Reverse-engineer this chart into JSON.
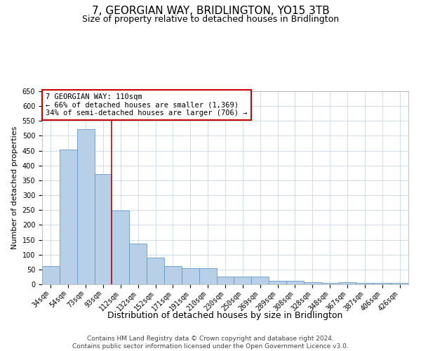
{
  "title": "7, GEORGIAN WAY, BRIDLINGTON, YO15 3TB",
  "subtitle": "Size of property relative to detached houses in Bridlington",
  "xlabel": "Distribution of detached houses by size in Bridlington",
  "ylabel": "Number of detached properties",
  "categories": [
    "34sqm",
    "54sqm",
    "73sqm",
    "93sqm",
    "112sqm",
    "132sqm",
    "152sqm",
    "171sqm",
    "191sqm",
    "210sqm",
    "230sqm",
    "250sqm",
    "269sqm",
    "289sqm",
    "308sqm",
    "328sqm",
    "348sqm",
    "367sqm",
    "387sqm",
    "406sqm",
    "426sqm"
  ],
  "values": [
    62,
    455,
    522,
    370,
    248,
    138,
    91,
    61,
    55,
    54,
    27,
    26,
    26,
    11,
    12,
    7,
    5,
    8,
    4,
    4,
    4
  ],
  "bar_color": "#b8cfe8",
  "bar_edge_color": "#6699cc",
  "vline_x_index": 4,
  "annotation_text": "7 GEORGIAN WAY: 110sqm\n← 66% of detached houses are smaller (1,369)\n34% of semi-detached houses are larger (706) →",
  "annotation_box_color": "#ffffff",
  "annotation_box_edge_color": "#cc0000",
  "vline_color": "#cc0000",
  "ylim": [
    0,
    650
  ],
  "yticks": [
    0,
    50,
    100,
    150,
    200,
    250,
    300,
    350,
    400,
    450,
    500,
    550,
    600,
    650
  ],
  "footer_line1": "Contains HM Land Registry data © Crown copyright and database right 2024.",
  "footer_line2": "Contains public sector information licensed under the Open Government Licence v3.0.",
  "bg_color": "#ffffff",
  "grid_color": "#c8d8e8",
  "title_fontsize": 11,
  "subtitle_fontsize": 9,
  "ylabel_fontsize": 8,
  "xlabel_fontsize": 9,
  "tick_fontsize": 7,
  "annotation_fontsize": 7.5,
  "footer_fontsize": 6.5
}
